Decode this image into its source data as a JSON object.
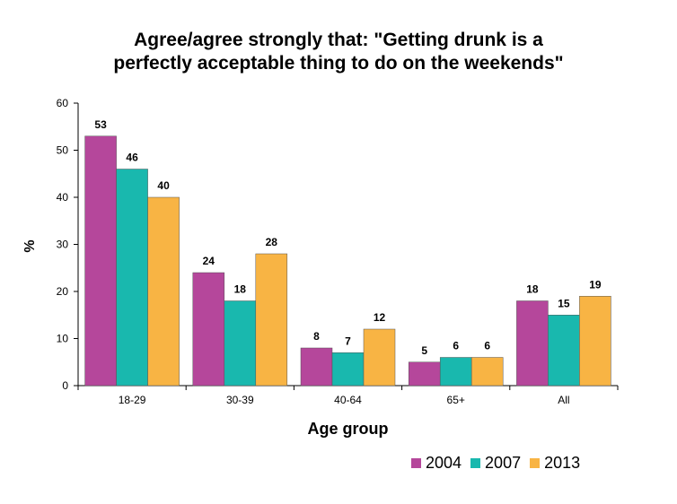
{
  "chart_data": {
    "type": "bar",
    "title_lines": [
      "Agree/agree strongly that: \"Getting drunk is a",
      "perfectly acceptable thing to do on the weekends\""
    ],
    "xlabel": "Age group",
    "ylabel": "%",
    "ylim": [
      0,
      60
    ],
    "yticks": [
      0,
      10,
      20,
      30,
      40,
      50,
      60
    ],
    "categories": [
      "18-29",
      "30-39",
      "40-64",
      "65+",
      "All"
    ],
    "series": [
      {
        "name": "2004",
        "color": "#B5479B",
        "values": [
          53,
          24,
          8,
          5,
          18
        ]
      },
      {
        "name": "2007",
        "color": "#19B8AE",
        "values": [
          46,
          18,
          7,
          6,
          15
        ]
      },
      {
        "name": "2013",
        "color": "#F8B444",
        "values": [
          40,
          28,
          12,
          6,
          19
        ]
      }
    ],
    "grid": false,
    "legend_position": "bottom-right"
  }
}
